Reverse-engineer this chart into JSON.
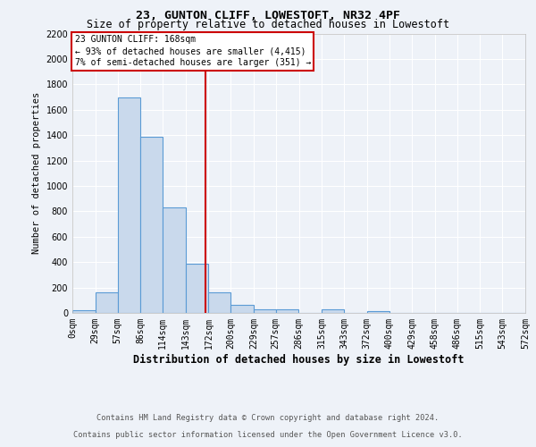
{
  "title1": "23, GUNTON CLIFF, LOWESTOFT, NR32 4PF",
  "title2": "Size of property relative to detached houses in Lowestoft",
  "xlabel": "Distribution of detached houses by size in Lowestoft",
  "ylabel": "Number of detached properties",
  "bin_labels": [
    "0sqm",
    "29sqm",
    "57sqm",
    "86sqm",
    "114sqm",
    "143sqm",
    "172sqm",
    "200sqm",
    "229sqm",
    "257sqm",
    "286sqm",
    "315sqm",
    "343sqm",
    "372sqm",
    "400sqm",
    "429sqm",
    "458sqm",
    "486sqm",
    "515sqm",
    "543sqm",
    "572sqm"
  ],
  "bin_edges": [
    0,
    29,
    57,
    86,
    114,
    143,
    172,
    200,
    229,
    257,
    286,
    315,
    343,
    372,
    400,
    429,
    458,
    486,
    515,
    543,
    572
  ],
  "bar_heights": [
    20,
    160,
    1700,
    1390,
    830,
    390,
    165,
    65,
    30,
    30,
    0,
    25,
    0,
    15,
    0,
    0,
    0,
    0,
    0,
    0
  ],
  "bar_color": "#c9d9ec",
  "bar_edge_color": "#5b9bd5",
  "vline_x": 168,
  "vline_color": "#cc0000",
  "annotation_line1": "23 GUNTON CLIFF: 168sqm",
  "annotation_line2": "← 93% of detached houses are smaller (4,415)",
  "annotation_line3": "7% of semi-detached houses are larger (351) →",
  "annotation_box_color": "#cc0000",
  "ylim": [
    0,
    2200
  ],
  "yticks": [
    0,
    200,
    400,
    600,
    800,
    1000,
    1200,
    1400,
    1600,
    1800,
    2000,
    2200
  ],
  "footer1": "Contains HM Land Registry data © Crown copyright and database right 2024.",
  "footer2": "Contains public sector information licensed under the Open Government Licence v3.0.",
  "bg_color": "#eef2f8",
  "grid_color": "#ffffff"
}
